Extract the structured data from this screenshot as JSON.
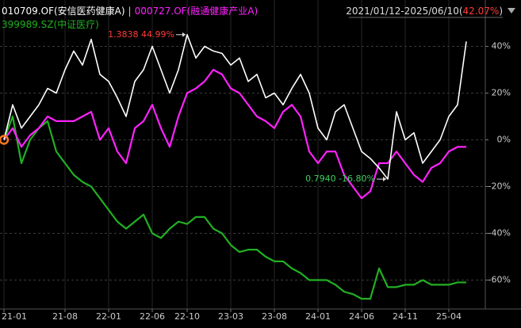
{
  "chart_data": {
    "type": "line",
    "period": "2021/01/12-2025/06/10",
    "brackets": [
      "(",
      ")"
    ],
    "period_return": {
      "value": 42.07,
      "label": "42.07%"
    },
    "separator": "|",
    "x": [
      "21-01",
      "21-02",
      "21-03",
      "21-04",
      "21-05",
      "21-06",
      "21-07",
      "21-08",
      "21-09",
      "21-10",
      "21-11",
      "21-12",
      "22-01",
      "22-02",
      "22-03",
      "22-04",
      "22-05",
      "22-06",
      "22-07",
      "22-08",
      "22-09",
      "22-10",
      "22-11",
      "22-12",
      "23-01",
      "23-02",
      "23-03",
      "23-04",
      "23-05",
      "23-06",
      "23-07",
      "23-08",
      "23-09",
      "23-10",
      "23-11",
      "23-12",
      "24-01",
      "24-02",
      "24-03",
      "24-04",
      "24-05",
      "24-06",
      "24-07",
      "24-08",
      "24-09",
      "24-10",
      "24-11",
      "24-12",
      "25-01",
      "25-02",
      "25-03",
      "25-04",
      "25-05",
      "25-06"
    ],
    "xticks": [
      "21-01",
      "21-08",
      "22-01",
      "22-06",
      "22-10",
      "23-03",
      "23-08",
      "24-01",
      "24-06",
      "24-11",
      "25-04"
    ],
    "ylim": [
      -70,
      50
    ],
    "yticks": [
      {
        "value": 40,
        "label": "40%"
      },
      {
        "value": 20,
        "label": "20%"
      },
      {
        "value": 0,
        "label": "0%"
      },
      {
        "value": -20,
        "label": "-20%"
      },
      {
        "value": -40,
        "label": "-40%"
      },
      {
        "value": -60,
        "label": "-60%"
      }
    ],
    "grid": true,
    "series": [
      {
        "name": "010709.OF(安信医药健康A)",
        "color": "#ffffff",
        "values": [
          0,
          15,
          5,
          10,
          15,
          22,
          20,
          30,
          38,
          32,
          43,
          28,
          25,
          18,
          10,
          25,
          30,
          40,
          30,
          20,
          30,
          44.99,
          35,
          40,
          38,
          37,
          32,
          35,
          25,
          28,
          18,
          20,
          15,
          22,
          28,
          20,
          5,
          0,
          12,
          15,
          5,
          -5,
          -8,
          -12,
          -16.8,
          12,
          0,
          3,
          -10,
          -5,
          0,
          10,
          15,
          42.07
        ]
      },
      {
        "name": "000727.OF(融通健康产业A)",
        "color": "#ff22ff",
        "values": [
          0,
          5,
          -3,
          2,
          5,
          10,
          8,
          8,
          8,
          10,
          12,
          0,
          5,
          -5,
          -10,
          5,
          8,
          15,
          5,
          -3,
          10,
          20,
          22,
          25,
          30,
          28,
          22,
          20,
          15,
          10,
          8,
          5,
          12,
          15,
          10,
          -5,
          -10,
          -5,
          -5,
          -15,
          -20,
          -25,
          -22,
          -10,
          -10,
          -5,
          -10,
          -15,
          -18,
          -12,
          -10,
          -5,
          -3,
          -3
        ]
      },
      {
        "name": "399989.SZ(中证医疗)",
        "color": "#22b022",
        "values": [
          0,
          10,
          -10,
          0,
          5,
          8,
          -5,
          -10,
          -15,
          -18,
          -20,
          -25,
          -30,
          -35,
          -38,
          -35,
          -32,
          -40,
          -42,
          -38,
          -35,
          -36,
          -33,
          -33,
          -38,
          -40,
          -45,
          -48,
          -47,
          -47,
          -50,
          -52,
          -52,
          -55,
          -57,
          -60,
          -60,
          -60,
          -62,
          -65,
          -66,
          -68,
          -68,
          -55,
          -63,
          -63,
          -62,
          -62,
          -60,
          -62,
          -62,
          -62,
          -61,
          -61
        ]
      }
    ],
    "annotations": [
      {
        "x": "22-10",
        "value": 44.99,
        "label": "1.3838 44.99%",
        "color": "#ff3b3b"
      },
      {
        "x": "24-09",
        "value": -16.8,
        "label": "0.7940 -16.80%",
        "color": "#3fcf5f"
      }
    ]
  }
}
